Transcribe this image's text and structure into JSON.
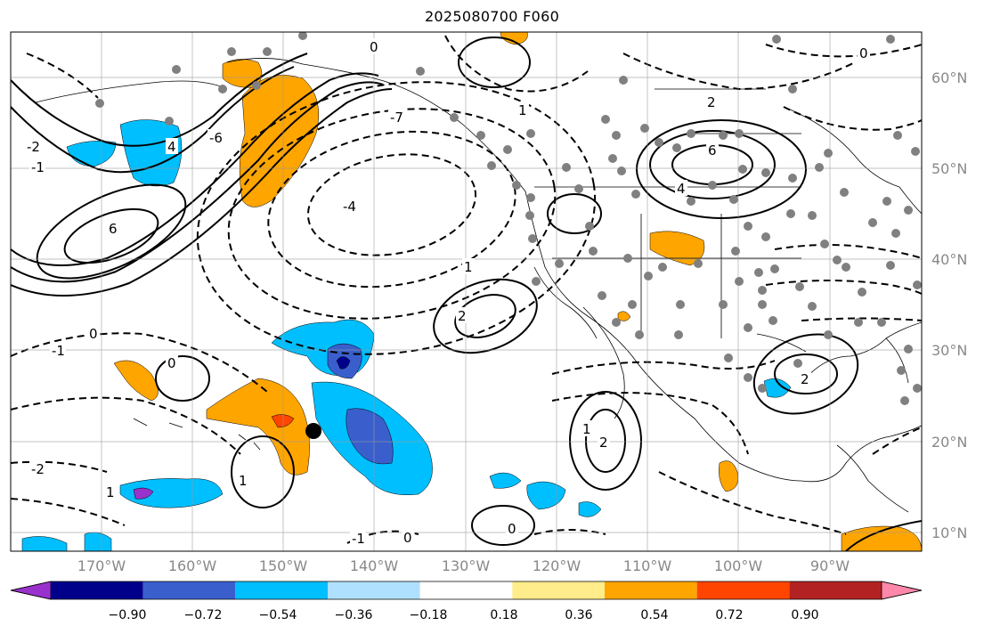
{
  "title": "2025080700 F060",
  "lat_labels": [
    "60°N",
    "50°N",
    "40°N",
    "30°N",
    "20°N",
    "10°N"
  ],
  "lon_labels": [
    "170°W",
    "160°W",
    "150°W",
    "140°W",
    "130°W",
    "120°W",
    "110°W",
    "100°W",
    "90°W"
  ],
  "colorbar": {
    "tick_labels": [
      "−0.90",
      "−0.72",
      "−0.54",
      "−0.36",
      "−0.18",
      "0.18",
      "0.36",
      "0.54",
      "0.72",
      "0.90"
    ],
    "colors": [
      "#9932cc",
      "#00008b",
      "#3a5fcd",
      "#00bfff",
      "#afe0ff",
      "#ffffff",
      "#ffec8b",
      "#ffa500",
      "#ff4500",
      "#b22222",
      "#ff88aa"
    ]
  },
  "contour_labels": [
    "6",
    "6",
    "4",
    "4",
    "2",
    "2",
    "2",
    "1",
    "1",
    "1",
    "0",
    "0",
    "0",
    "0",
    "0",
    "-1",
    "-1",
    "-2",
    "-4",
    "-6",
    "-1",
    "-2",
    "-7",
    "1",
    "2",
    "1",
    "0"
  ],
  "marker": "storm-center"
}
